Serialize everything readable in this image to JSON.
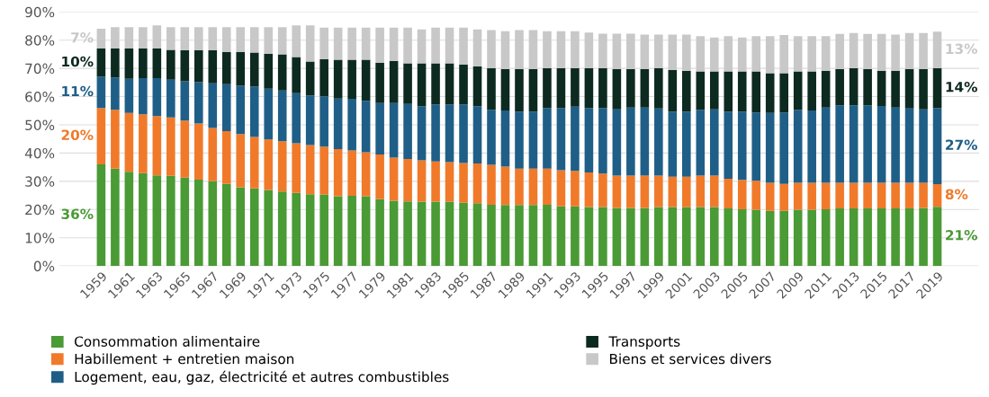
{
  "chart_data": {
    "type": "bar",
    "stacked": true,
    "categories": [
      "1959",
      null,
      "1961",
      null,
      "1963",
      null,
      "1965",
      null,
      "1967",
      null,
      "1969",
      null,
      "1971",
      null,
      "1973",
      null,
      "1975",
      null,
      "1977",
      null,
      "1979",
      null,
      "1981",
      null,
      "1983",
      null,
      "1985",
      null,
      "1987",
      null,
      "1989",
      null,
      "1991",
      null,
      "1993",
      null,
      "1995",
      null,
      "1997",
      null,
      "1999",
      null,
      "2001",
      null,
      "2003",
      null,
      "2005",
      null,
      "2007",
      null,
      "2009",
      null,
      "2011",
      null,
      "2013",
      null,
      "2015",
      null,
      "2017",
      null,
      "2019"
    ],
    "series": [
      {
        "name": "Consommation alimentaire",
        "color": "#4a9a35",
        "values": [
          36,
          34.5,
          33.4,
          32.9,
          32.1,
          31.9,
          31.3,
          30.6,
          30.0,
          29.1,
          27.9,
          27.5,
          26.9,
          26.4,
          25.9,
          25.4,
          25.3,
          24.7,
          24.9,
          24.7,
          23.7,
          23.1,
          22.9,
          22.8,
          22.8,
          22.8,
          22.4,
          22.2,
          21.7,
          21.6,
          21.6,
          21.6,
          21.7,
          21.1,
          21.1,
          20.9,
          20.9,
          20.6,
          20.6,
          20.6,
          20.9,
          20.9,
          20.9,
          20.9,
          20.9,
          20.4,
          20.1,
          19.9,
          19.5,
          19.5,
          19.9,
          19.9,
          20.1,
          20.4,
          20.4,
          20.4,
          20.4,
          20.4,
          20.4,
          20.6,
          21
        ]
      },
      {
        "name": "Habillement + entretien maison",
        "color": "#f07a2a",
        "values": [
          20,
          20.8,
          20.8,
          20.8,
          21.0,
          20.7,
          20.2,
          19.9,
          18.9,
          18.7,
          18.8,
          18.2,
          17.9,
          17.8,
          17.6,
          17.4,
          17.0,
          16.7,
          16.0,
          15.6,
          15.8,
          15.3,
          15.0,
          14.6,
          14.2,
          14.0,
          14.1,
          14.1,
          14.1,
          13.6,
          12.9,
          12.9,
          12.8,
          12.8,
          12.6,
          12.2,
          11.8,
          11.4,
          11.4,
          11.4,
          11.1,
          10.7,
          10.7,
          11.1,
          11.1,
          10.5,
          10.4,
          10.3,
          10.0,
          9.6,
          9.6,
          9.6,
          9.4,
          9.1,
          9.1,
          9.1,
          9.1,
          9.1,
          9.1,
          8.9,
          8
        ]
      },
      {
        "name": "Logement, eau, gaz, électricité et autres combustibles",
        "color": "#1f5f87",
        "values": [
          11,
          11.5,
          12.1,
          12.8,
          13.4,
          13.4,
          13.9,
          14.6,
          15.8,
          16.6,
          17.1,
          17.8,
          18.0,
          18.0,
          17.7,
          17.6,
          17.8,
          17.9,
          18.3,
          18.2,
          18.2,
          19.3,
          19.5,
          19.2,
          20.2,
          20.4,
          20.7,
          20.3,
          19.5,
          19.9,
          20.2,
          20.2,
          21.5,
          22.1,
          22.7,
          22.9,
          23.3,
          23.5,
          24.1,
          24.1,
          23.8,
          23.1,
          23.1,
          23.3,
          23.5,
          23.8,
          24.2,
          24.2,
          24.7,
          25.3,
          25.8,
          25.6,
          26.6,
          27.4,
          27.4,
          27.4,
          27.2,
          26.6,
          26.3,
          26.0,
          27
        ]
      },
      {
        "name": "Transports",
        "color": "#0d2a20",
        "values": [
          10,
          10.2,
          10.7,
          10.5,
          10.5,
          10.6,
          11.0,
          11.3,
          11.7,
          11.4,
          12.0,
          12.1,
          12.4,
          12.8,
          12.8,
          12.0,
          13.1,
          13.8,
          13.9,
          14.6,
          14.3,
          14.9,
          14.4,
          15.2,
          14.6,
          14.6,
          14.1,
          14.1,
          14.7,
          14.6,
          15.0,
          15.0,
          14.0,
          14.0,
          13.6,
          14.0,
          14.0,
          14.2,
          13.6,
          13.6,
          14.2,
          14.7,
          14.5,
          13.6,
          13.4,
          14.2,
          14.2,
          14.5,
          14.1,
          13.9,
          13.6,
          13.8,
          13.1,
          12.8,
          13.1,
          12.8,
          12.5,
          13.1,
          13.9,
          14.2,
          14
        ]
      },
      {
        "name": "Biens et services divers",
        "color": "#c8c8c8",
        "values": [
          7,
          7.6,
          7.6,
          7.6,
          8.2,
          8.0,
          8.2,
          8.2,
          8.2,
          8.8,
          8.8,
          9.0,
          9.4,
          9.6,
          11.2,
          12.8,
          11.2,
          11.3,
          11.3,
          11.3,
          12.4,
          11.8,
          12.6,
          12.0,
          12.6,
          12.6,
          13.1,
          13.1,
          13.6,
          13.5,
          13.9,
          13.9,
          13.2,
          13.2,
          13.2,
          12.7,
          12.3,
          12.6,
          12.6,
          12.3,
          12.0,
          12.6,
          12.8,
          12.5,
          12.0,
          12.5,
          12.0,
          12.5,
          13.1,
          13.5,
          12.5,
          12.5,
          12.2,
          12.5,
          12.5,
          12.5,
          13.0,
          12.8,
          12.8,
          12.8,
          13
        ]
      }
    ],
    "annotations": [
      {
        "text": "36%",
        "x": "1959",
        "y": 18
      },
      {
        "text": "20%",
        "x": "1959",
        "y": 46
      },
      {
        "text": "11%",
        "x": "1959",
        "y": 61.5
      },
      {
        "text": "10%",
        "x": "1959",
        "y": 72
      },
      {
        "text": "7%",
        "x": "1959",
        "y": 80.5
      },
      {
        "text": "21%",
        "x": "2019",
        "y": 10.5
      },
      {
        "text": "8%",
        "x": "2019",
        "y": 25
      },
      {
        "text": "27%",
        "x": "2019",
        "y": 42.5
      },
      {
        "text": "14%",
        "x": "2019",
        "y": 63
      },
      {
        "text": "13%",
        "x": "2019",
        "y": 76.5
      }
    ],
    "ylim": [
      0,
      90
    ],
    "yticks": [
      {
        "value": 0,
        "label": "0%"
      },
      {
        "value": 10,
        "label": "10%"
      },
      {
        "value": 20,
        "label": "20%"
      },
      {
        "value": 30,
        "label": "30%"
      },
      {
        "value": 40,
        "label": "40%"
      },
      {
        "value": 50,
        "label": "50%"
      },
      {
        "value": 60,
        "label": "60%"
      },
      {
        "value": 70,
        "label": "70%"
      },
      {
        "value": 80,
        "label": "80%"
      },
      {
        "value": 90,
        "label": "90%"
      }
    ],
    "grid": "y",
    "legend": "bottom"
  }
}
